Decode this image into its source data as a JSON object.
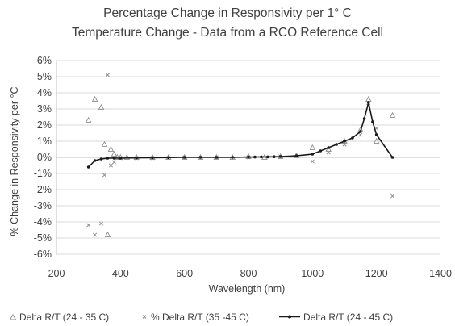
{
  "chart_data": {
    "type": "scatter",
    "title_line1": "Percentage Change in Responsivity per 1° C",
    "title_line2": "Temperature Change - Data from a RCO Reference Cell",
    "xlabel": "Wavelength (nm)",
    "ylabel": "% Change in Responsivity per °C",
    "xlim": [
      200,
      1400
    ],
    "ylim": [
      -6,
      6
    ],
    "x_ticks": [
      200,
      400,
      600,
      800,
      1000,
      1200,
      1400
    ],
    "y_ticks": [
      -6,
      -5,
      -4,
      -3,
      -2,
      -1,
      0,
      1,
      2,
      3,
      4,
      5,
      6
    ],
    "x_tick_labels": [
      "200",
      "400",
      "600",
      "800",
      "1000",
      "1200",
      "1400"
    ],
    "y_tick_labels": [
      "-6%",
      "-5%",
      "-4%",
      "-3%",
      "-2%",
      "-1%",
      "0%",
      "1%",
      "2%",
      "3%",
      "4%",
      "5%",
      "6%"
    ],
    "grid": "horizontal",
    "legend_position": "bottom",
    "series": [
      {
        "name": "Delta R/T (24 - 35 C)",
        "marker": "triangle",
        "color": "#8c8c8c",
        "x": [
          300,
          320,
          340,
          350,
          360,
          370,
          380,
          390,
          400,
          420,
          450,
          500,
          550,
          600,
          650,
          700,
          750,
          800,
          850,
          900,
          950,
          1000,
          1050,
          1100,
          1150,
          1175,
          1200,
          1250
        ],
        "y": [
          2.3,
          3.6,
          3.1,
          0.8,
          -4.8,
          0.5,
          0.2,
          0.0,
          0.0,
          0.0,
          0.0,
          0.0,
          0.0,
          0.0,
          0.0,
          0.0,
          0.0,
          0.05,
          0.0,
          0.05,
          0.1,
          0.6,
          0.5,
          1.0,
          1.7,
          3.6,
          1.0,
          2.6
        ]
      },
      {
        "name": "% Delta R/T (35 -45 C)",
        "marker": "x",
        "color": "#8c8c8c",
        "x": [
          300,
          320,
          340,
          350,
          360,
          370,
          380,
          400,
          450,
          500,
          600,
          700,
          800,
          900,
          1000,
          1050,
          1100,
          1150,
          1175,
          1200,
          1250
        ],
        "y": [
          -4.2,
          -4.8,
          -4.1,
          -1.1,
          5.1,
          -0.5,
          -0.3,
          -0.05,
          -0.05,
          -0.05,
          0.0,
          0.0,
          0.0,
          0.05,
          -0.25,
          0.3,
          0.8,
          1.4,
          3.2,
          1.8,
          -2.4
        ]
      },
      {
        "name": "Delta R/T (24 - 45 C)",
        "marker": "line-dot",
        "color": "#1a1a1a",
        "x": [
          300,
          320,
          340,
          360,
          380,
          400,
          450,
          500,
          550,
          600,
          650,
          700,
          750,
          800,
          820,
          840,
          860,
          880,
          900,
          950,
          1000,
          1025,
          1050,
          1075,
          1100,
          1125,
          1150,
          1162,
          1175,
          1188,
          1200,
          1250
        ],
        "y": [
          -0.6,
          -0.2,
          -0.1,
          -0.05,
          -0.05,
          -0.05,
          -0.03,
          -0.02,
          -0.01,
          0.0,
          0.0,
          0.0,
          0.0,
          0.02,
          0.02,
          0.03,
          0.03,
          0.04,
          0.05,
          0.1,
          0.2,
          0.4,
          0.6,
          0.8,
          1.0,
          1.2,
          1.6,
          2.4,
          3.4,
          2.2,
          1.4,
          0.0
        ]
      }
    ]
  }
}
